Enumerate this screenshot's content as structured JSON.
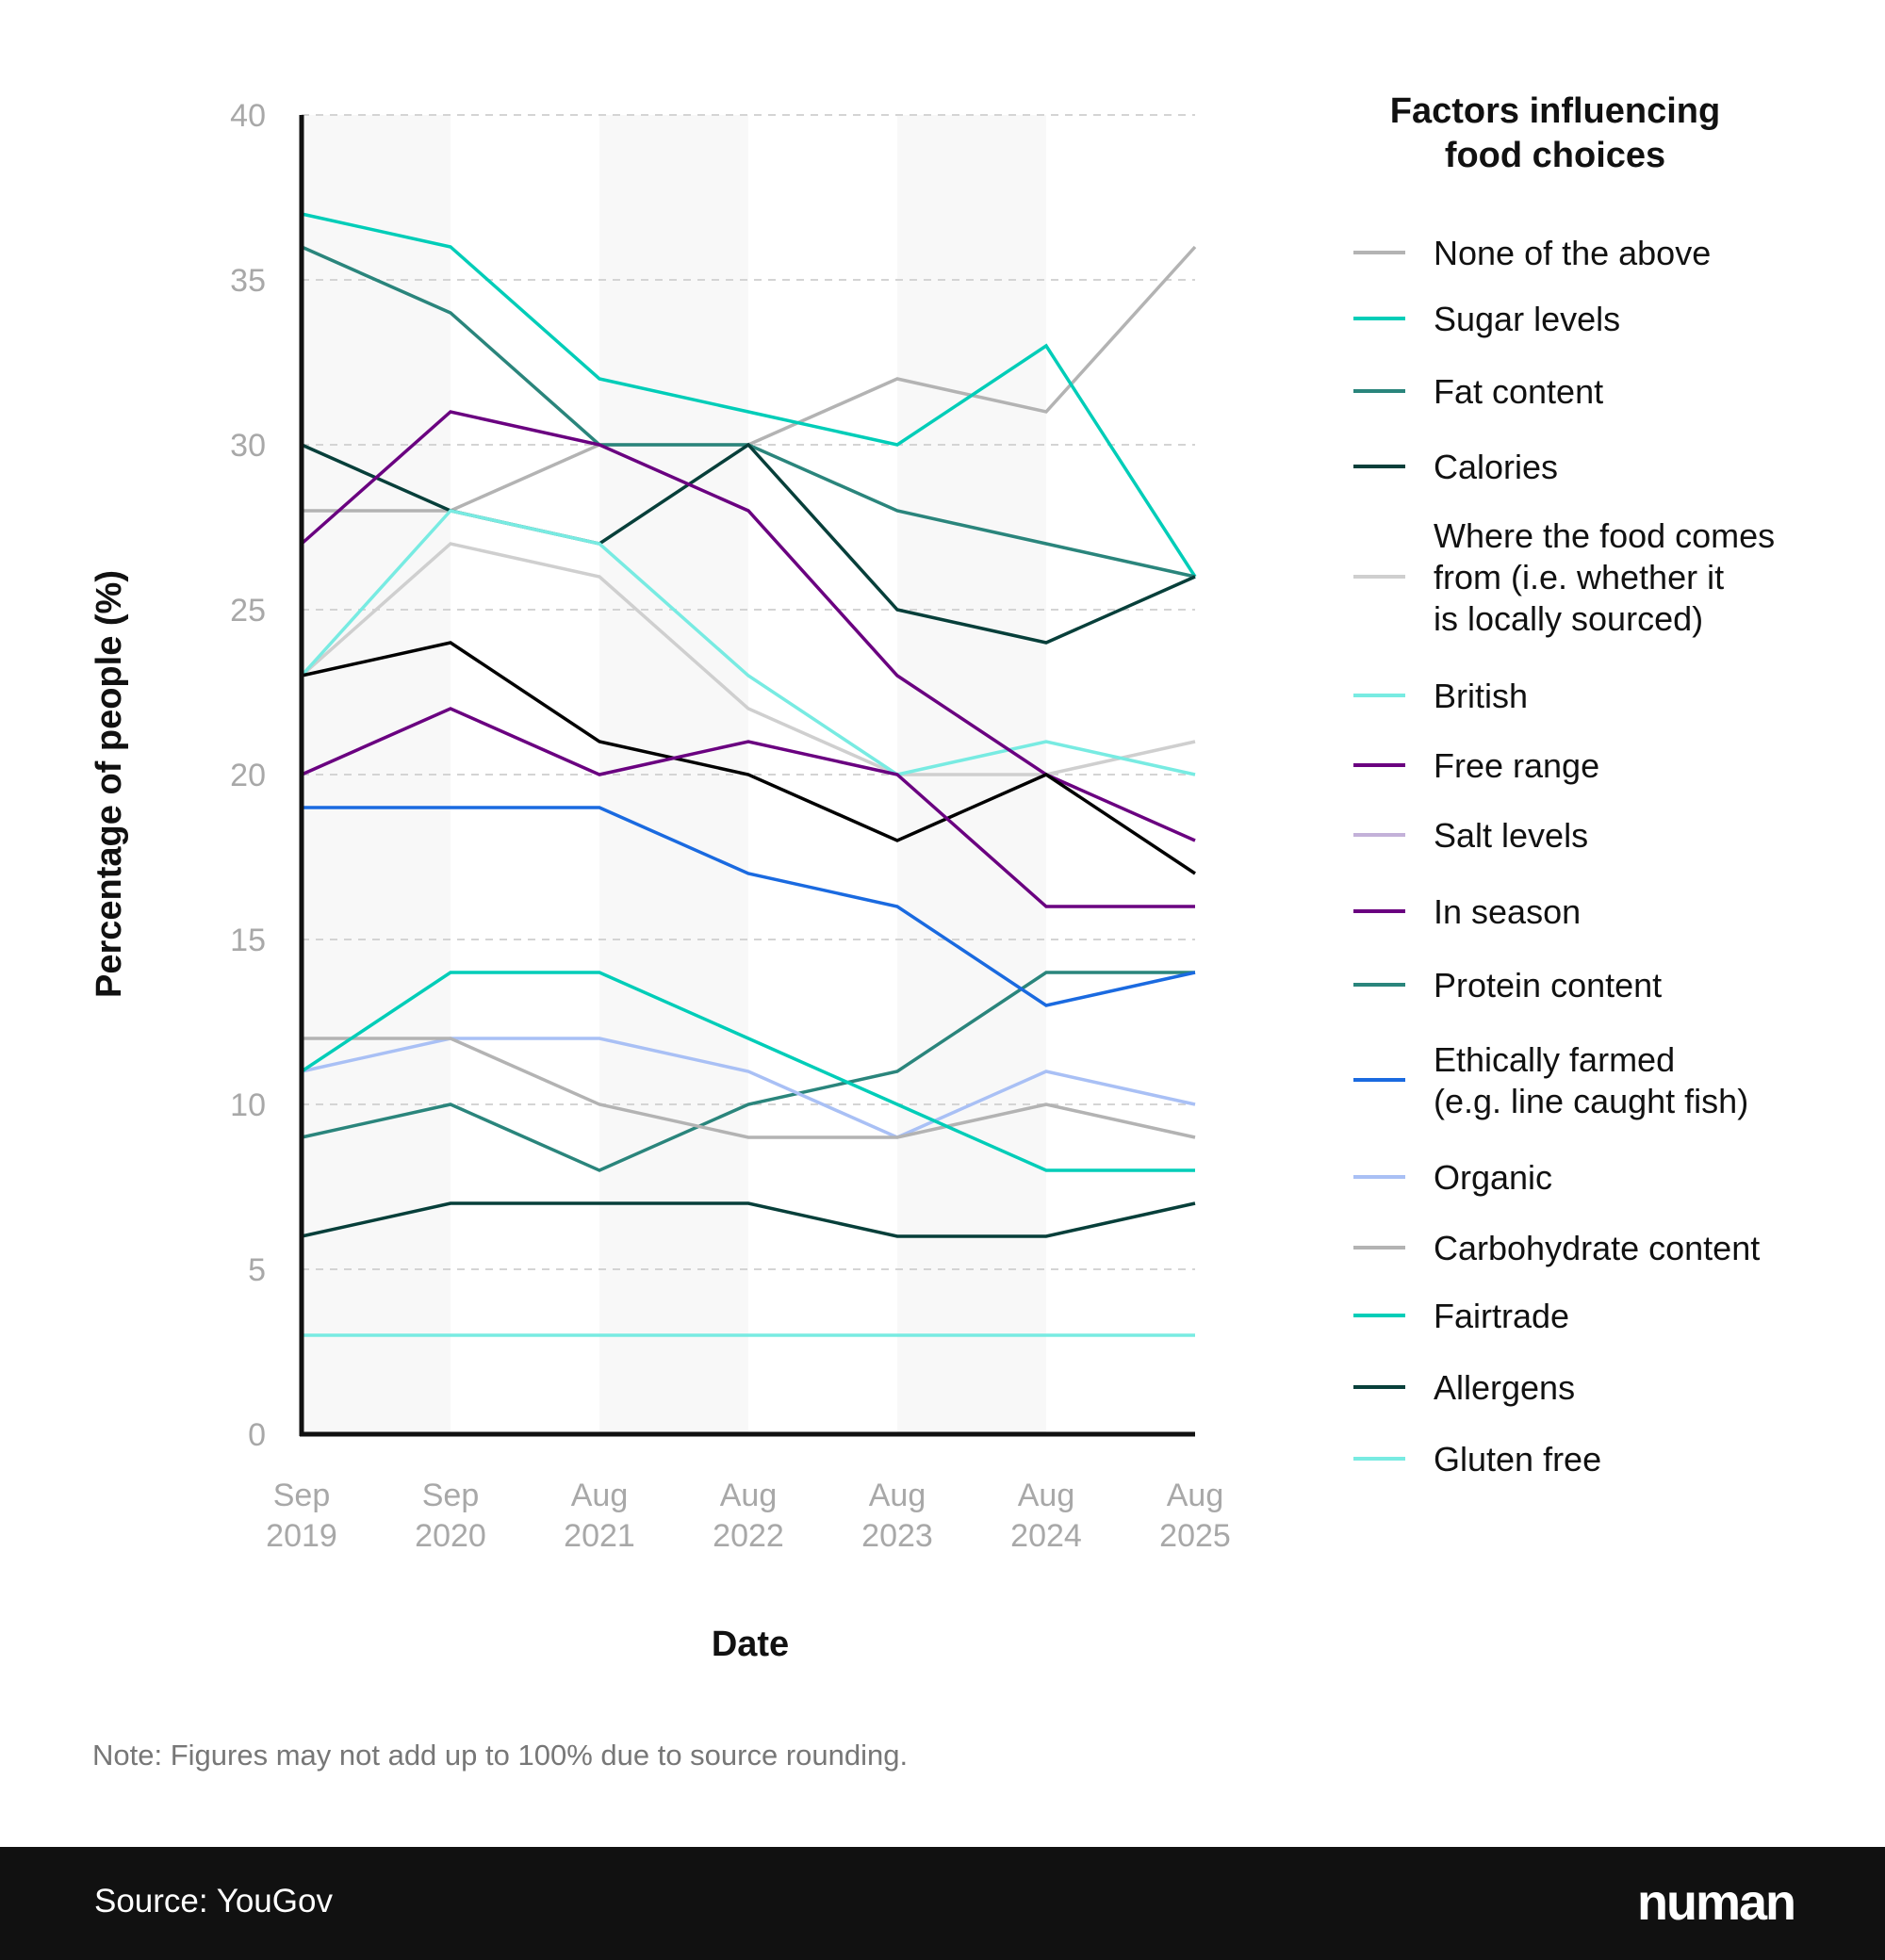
{
  "chart_data": {
    "type": "line",
    "title": "",
    "xlabel": "Date",
    "ylabel": "Percentage of people (%)",
    "ylim": [
      0,
      40
    ],
    "yticks": [
      0,
      5,
      10,
      15,
      20,
      25,
      30,
      35,
      40
    ],
    "grid": "horizontal dashed",
    "categories": [
      [
        "Sep",
        "2019"
      ],
      [
        "Sep",
        "2020"
      ],
      [
        "Aug",
        "2021"
      ],
      [
        "Aug",
        "2022"
      ],
      [
        "Aug",
        "2023"
      ],
      [
        "Aug",
        "2024"
      ],
      [
        "Aug",
        "2025"
      ]
    ],
    "legend_title": [
      "Factors influencing",
      "food choices"
    ],
    "legend_placement": "right",
    "series": [
      {
        "name": [
          "None of the above"
        ],
        "color": "#b3b3b3",
        "legend_color": "#b3b3b3",
        "values": [
          28,
          28,
          30,
          30,
          32,
          31,
          36
        ]
      },
      {
        "name": [
          "Sugar levels"
        ],
        "color": "#00cdb8",
        "legend_color": "#00cdb8",
        "values": [
          37,
          36,
          32,
          31,
          30,
          33,
          26
        ]
      },
      {
        "name": [
          "Fat content"
        ],
        "color": "#2a857c",
        "legend_color": "#2a857c",
        "values": [
          36,
          34,
          30,
          30,
          28,
          27,
          26
        ]
      },
      {
        "name": [
          "Calories"
        ],
        "color": "#073f3a",
        "legend_color": "#073f3a",
        "values": [
          30,
          28,
          27,
          30,
          25,
          24,
          26
        ]
      },
      {
        "name": [
          "Where the food comes",
          "from (i.e. whether it",
          "is locally sourced)"
        ],
        "color": "#cfcfcf",
        "legend_color": "#cfcfcf",
        "values": [
          23,
          27,
          26,
          22,
          20,
          20,
          21
        ]
      },
      {
        "name": [
          "British"
        ],
        "color": "#78ebe2",
        "legend_color": "#78ebe2",
        "values": [
          23,
          28,
          27,
          23,
          20,
          21,
          20
        ]
      },
      {
        "name": [
          "Free range"
        ],
        "color": "#6a0080",
        "legend_color": "#6a0080",
        "values": [
          27,
          31,
          30,
          28,
          23,
          20,
          18
        ]
      },
      {
        "name": [
          "Salt levels"
        ],
        "color": "#000000",
        "legend_color": "#c3b1d9",
        "values": [
          23,
          24,
          21,
          20,
          18,
          20,
          17
        ]
      },
      {
        "name": [
          "In season"
        ],
        "color": "#6a0080",
        "legend_color": "#6a0080",
        "values": [
          20,
          22,
          20,
          21,
          20,
          16,
          16
        ]
      },
      {
        "name": [
          "Protein content"
        ],
        "color": "#2a857c",
        "legend_color": "#2a857c",
        "values": [
          9,
          10,
          8,
          10,
          11,
          14,
          14
        ]
      },
      {
        "name": [
          "Ethically farmed",
          "(e.g. line caught fish)"
        ],
        "color": "#1a6ae0",
        "legend_color": "#1a6ae0",
        "values": [
          19,
          19,
          19,
          17,
          16,
          13,
          14
        ]
      },
      {
        "name": [
          "Organic"
        ],
        "color": "#a9c0f5",
        "legend_color": "#a9c0f5",
        "values": [
          11,
          12,
          12,
          11,
          9,
          11,
          10
        ]
      },
      {
        "name": [
          "Carbohydrate content"
        ],
        "color": "#b3b3b3",
        "legend_color": "#b3b3b3",
        "values": [
          12,
          12,
          10,
          9,
          9,
          10,
          9
        ]
      },
      {
        "name": [
          "Fairtrade"
        ],
        "color": "#00cdb8",
        "legend_color": "#00cdb8",
        "values": [
          11,
          14,
          14,
          12,
          10,
          8,
          8
        ]
      },
      {
        "name": [
          "Allergens"
        ],
        "color": "#073f3a",
        "legend_color": "#073f3a",
        "values": [
          6,
          7,
          7,
          7,
          6,
          6,
          7
        ]
      },
      {
        "name": [
          "Gluten free"
        ],
        "color": "#78ebe2",
        "legend_color": "#78ebe2",
        "values": [
          3,
          3,
          3,
          3,
          3,
          3,
          3
        ]
      }
    ]
  },
  "note": "Note: Figures may not add up to 100% due to source rounding.",
  "footer": {
    "source": "Source: YouGov",
    "logo": "numan"
  }
}
